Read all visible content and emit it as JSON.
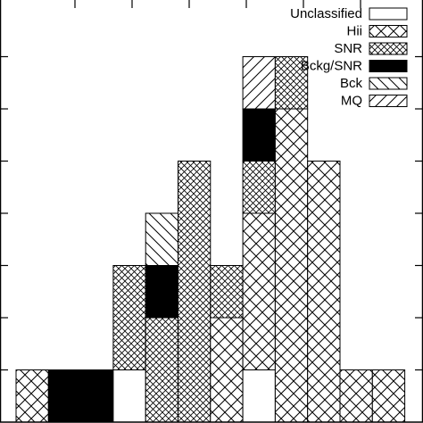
{
  "chart_data": {
    "type": "bar",
    "stacked": true,
    "title": "",
    "xlabel": "",
    "ylabel": "",
    "x_bins": 12,
    "ylim": [
      0,
      8
    ],
    "legend": {
      "placement": "top-right",
      "entries": [
        {
          "name": "Unclassified",
          "pattern": "empty"
        },
        {
          "name": "Hii",
          "pattern": "crosshatch-wide"
        },
        {
          "name": "SNR",
          "pattern": "crosshatch-dense"
        },
        {
          "name": "Bckg/SNR",
          "pattern": "solid"
        },
        {
          "name": "Bck",
          "pattern": "diagonal-back"
        },
        {
          "name": "MQ",
          "pattern": "diagonal-forward"
        }
      ]
    },
    "series": [
      {
        "name": "Unclassified",
        "values": [
          0,
          0,
          0,
          1,
          0,
          0,
          0,
          1,
          0,
          0,
          0,
          0
        ]
      },
      {
        "name": "Hii",
        "values": [
          1,
          0,
          0,
          0,
          0,
          0,
          2,
          3,
          6,
          5,
          1,
          1
        ]
      },
      {
        "name": "SNR",
        "values": [
          0,
          0,
          0,
          2,
          2,
          5,
          1,
          1,
          1,
          0,
          0,
          0
        ]
      },
      {
        "name": "Bckg/SNR",
        "values": [
          0,
          1,
          1,
          0,
          1,
          0,
          0,
          1,
          0,
          0,
          0,
          0
        ]
      },
      {
        "name": "Bck",
        "values": [
          0,
          0,
          0,
          0,
          1,
          0,
          0,
          0,
          0,
          0,
          0,
          0
        ]
      },
      {
        "name": "MQ",
        "values": [
          0,
          0,
          0,
          0,
          0,
          0,
          0,
          1,
          0,
          0,
          0,
          0
        ]
      }
    ]
  }
}
